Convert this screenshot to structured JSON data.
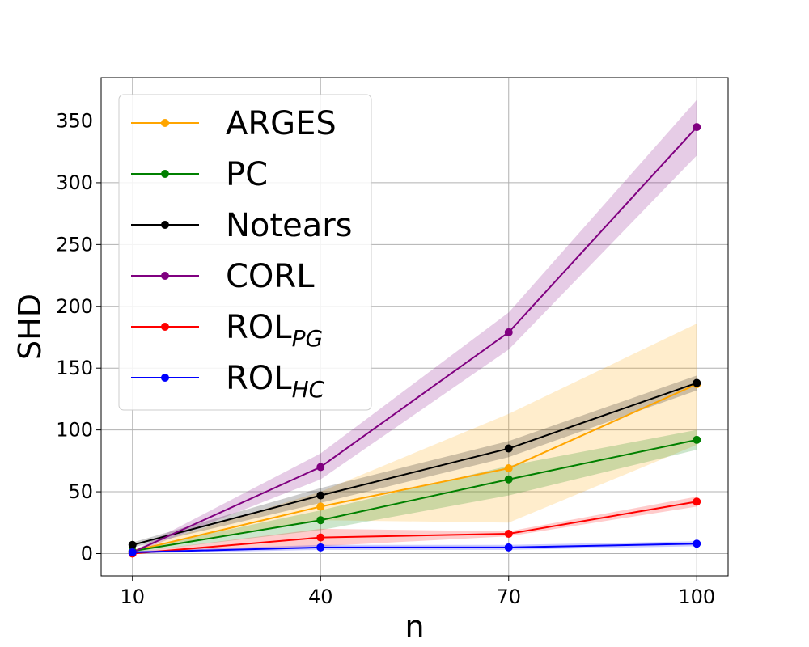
{
  "chart_data": {
    "type": "line",
    "title": "",
    "xlabel": "n",
    "ylabel": "SHD",
    "x": [
      10,
      40,
      70,
      100
    ],
    "xticks": [
      "10",
      "40",
      "70",
      "100"
    ],
    "xlim": [
      5,
      105
    ],
    "yticks": [
      "0",
      "50",
      "100",
      "150",
      "200",
      "250",
      "300",
      "350"
    ],
    "ylim": [
      -18,
      385
    ],
    "grid": true,
    "legend_position": "top-left",
    "series": [
      {
        "name": "ARGES",
        "label_main": "ARGES",
        "label_sub": "",
        "color": "#ffa500",
        "values": [
          2,
          38,
          69,
          137
        ],
        "lower": [
          1,
          27,
          25,
          88
        ],
        "upper": [
          3,
          50,
          113,
          186
        ]
      },
      {
        "name": "PC",
        "label_main": "PC",
        "label_sub": "",
        "color": "#008000",
        "values": [
          2,
          27,
          60,
          92
        ],
        "lower": [
          1,
          19,
          47,
          84
        ],
        "upper": [
          3,
          35,
          71,
          100
        ]
      },
      {
        "name": "Notears",
        "label_main": "Notears",
        "label_sub": "",
        "color": "#000000",
        "values": [
          7,
          47,
          85,
          138
        ],
        "lower": [
          5,
          41,
          78,
          132
        ],
        "upper": [
          9,
          53,
          91,
          144
        ]
      },
      {
        "name": "CORL",
        "label_main": "CORL",
        "label_sub": "",
        "color": "#800080",
        "values": [
          1,
          70,
          179,
          345
        ],
        "lower": [
          0,
          60,
          165,
          322
        ],
        "upper": [
          2,
          81,
          195,
          367
        ]
      },
      {
        "name": "ROL_PG",
        "label_main": "ROL",
        "label_sub": "PG",
        "color": "#ff0000",
        "values": [
          0,
          13,
          16,
          42
        ],
        "lower": [
          0,
          6,
          14,
          38
        ],
        "upper": [
          1,
          20,
          18,
          46
        ]
      },
      {
        "name": "ROL_HC",
        "label_main": "ROL",
        "label_sub": "HC",
        "color": "#0000ff",
        "values": [
          1,
          5,
          5,
          8
        ],
        "lower": [
          0,
          3,
          3,
          6
        ],
        "upper": [
          2,
          7,
          7,
          10
        ]
      }
    ]
  }
}
